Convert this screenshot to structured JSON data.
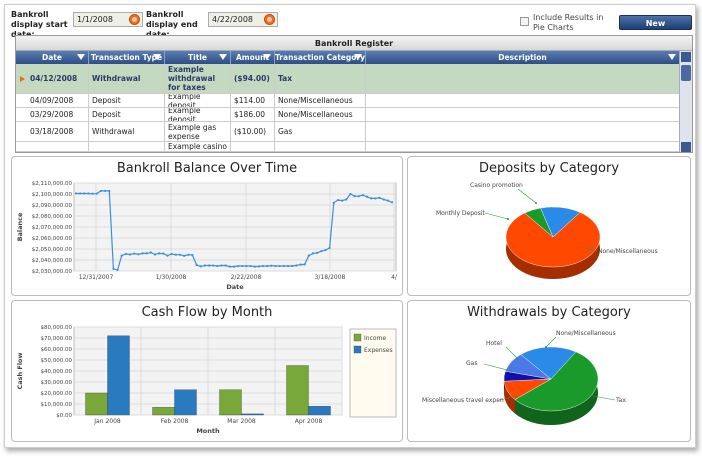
{
  "filters": {
    "start_label": "Bankroll display start date:",
    "start_value": "1/1/2008",
    "end_label": "Bankroll display end date:",
    "end_value": "4/22/2008",
    "pie_checkbox_label": "Include Results in Pie Charts",
    "new_transaction_label": "New Transaction..."
  },
  "register": {
    "title": "Bankroll Register",
    "columns": [
      "Date",
      "Transaction Type",
      "Title",
      "Amount",
      "Transaction Category",
      "Description"
    ],
    "rows": [
      [
        "04/12/2008",
        "Withdrawal",
        "Example withdrawal for taxes",
        "($94.00)",
        "Tax",
        ""
      ],
      [
        "04/09/2008",
        "Deposit",
        "Example deposit",
        "$114.00",
        "None/Miscellaneous",
        ""
      ],
      [
        "03/29/2008",
        "Deposit",
        "Example deposit",
        "$186.00",
        "None/Miscellaneous",
        ""
      ],
      [
        "03/18/2008",
        "Withdrawal",
        "Example gas expense",
        "($10.00)",
        "Gas",
        ""
      ],
      [
        "",
        "",
        "Example casino",
        "",
        "",
        ""
      ]
    ]
  },
  "colors": {
    "line": "#3a8fe0",
    "income": "#78a83a",
    "expenses": "#2a7ac0",
    "pie_orange": "#ff4800",
    "pie_green": "#1a9a2a",
    "pie_blue": "#2a8ae8",
    "pie_navy": "#1010b0",
    "pie_lightblue": "#4a7ae8"
  },
  "balance_chart": {
    "chart_data": {
      "type": "line",
      "title": "Bankroll Balance Over Time",
      "xlabel": "Date",
      "ylabel": "Balance",
      "ylim": [
        2030000,
        2110000
      ],
      "yticks": [
        "$2,110,000.00",
        "$2,100,000.00",
        "$2,090,000.00",
        "$2,080,000.00",
        "$2,070,000.00",
        "$2,060,000.00",
        "$2,050,000.00",
        "$2,040,000.00",
        "$2,030,000.00"
      ],
      "xticks": [
        "12/31/2007",
        "1/30/2008",
        "2/22/2008",
        "3/18/2008",
        "4/"
      ],
      "y": [
        2100500,
        2100500,
        2100500,
        2100500,
        2100200,
        2100300,
        2102800,
        2102800,
        2102800,
        2032000,
        2031000,
        2044000,
        2045500,
        2045000,
        2045800,
        2045200,
        2046000,
        2046000,
        2046800,
        2045000,
        2046000,
        2045800,
        2044000,
        2045500,
        2044800,
        2044800,
        2043800,
        2044800,
        2044500,
        2035500,
        2034200,
        2035000,
        2035000,
        2035000,
        2034500,
        2035000,
        2035000,
        2034000,
        2034000,
        2034500,
        2034500,
        2034500,
        2034500,
        2034000,
        2034200,
        2034500,
        2034500,
        2034800,
        2034500,
        2034500,
        2034500,
        2034500,
        2034500,
        2035000,
        2035800,
        2036000,
        2044000,
        2046000,
        2046500,
        2048000,
        2049000,
        2051000,
        2092000,
        2094500,
        2094000,
        2095000,
        2100000,
        2098000,
        2098000,
        2099000,
        2097500,
        2096000,
        2096000,
        2096500,
        2095000,
        2094000,
        2092500
      ]
    }
  },
  "cashflow_chart": {
    "chart_data": {
      "type": "bar",
      "title": "Cash Flow by Month",
      "xlabel": "Month",
      "ylabel": "Cash Flow",
      "ylim": [
        0,
        80000
      ],
      "yticks": [
        "$80,000.00",
        "$70,000.00",
        "$60,000.00",
        "$50,000.00",
        "$40,000.00",
        "$30,000.00",
        "$20,000.00",
        "$10,000.00",
        "$0.00"
      ],
      "categories": [
        "Jan 2008",
        "Feb 2008",
        "Mar 2008",
        "Apr 2008"
      ],
      "series": [
        {
          "name": "Income",
          "values": [
            20000,
            7000,
            23000,
            45000
          ]
        },
        {
          "name": "Expenses",
          "values": [
            72000,
            23000,
            1000,
            8000
          ]
        }
      ],
      "legend": "right"
    }
  },
  "deposits_chart": {
    "chart_data": {
      "type": "pie",
      "title": "Deposits by Category",
      "labels": [
        "None/Miscellaneous",
        "Monthly Deposit",
        "Casino promotion"
      ],
      "values": [
        80,
        6,
        14
      ]
    }
  },
  "withdrawals_chart": {
    "chart_data": {
      "type": "pie",
      "title": "Withdrawals by Category",
      "labels": [
        "Tax",
        "None/Miscellaneous",
        "Hotel",
        "Gas",
        "Miscellaneous travel expen"
      ],
      "values": [
        55,
        10,
        5,
        10,
        20
      ]
    }
  }
}
